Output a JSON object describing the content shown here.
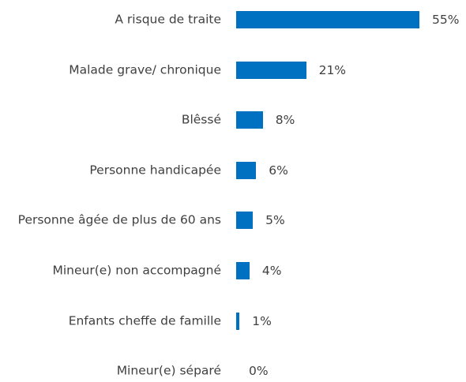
{
  "chart_data": {
    "type": "bar",
    "orientation": "horizontal",
    "color": "#0070c0",
    "categories": [
      "A risque de traite",
      "Malade grave/ chronique",
      "Blêssé",
      "Personne handicapée",
      "Personne âgée de plus de 60 ans",
      "Mineur(e) non accompagné",
      "Enfants cheffe de famille",
      "Mineur(e) séparé"
    ],
    "values": [
      55,
      21,
      8,
      6,
      5,
      4,
      1,
      0
    ],
    "value_labels": [
      "55%",
      "21%",
      "8%",
      "6%",
      "5%",
      "4%",
      "1%",
      "0%"
    ]
  }
}
